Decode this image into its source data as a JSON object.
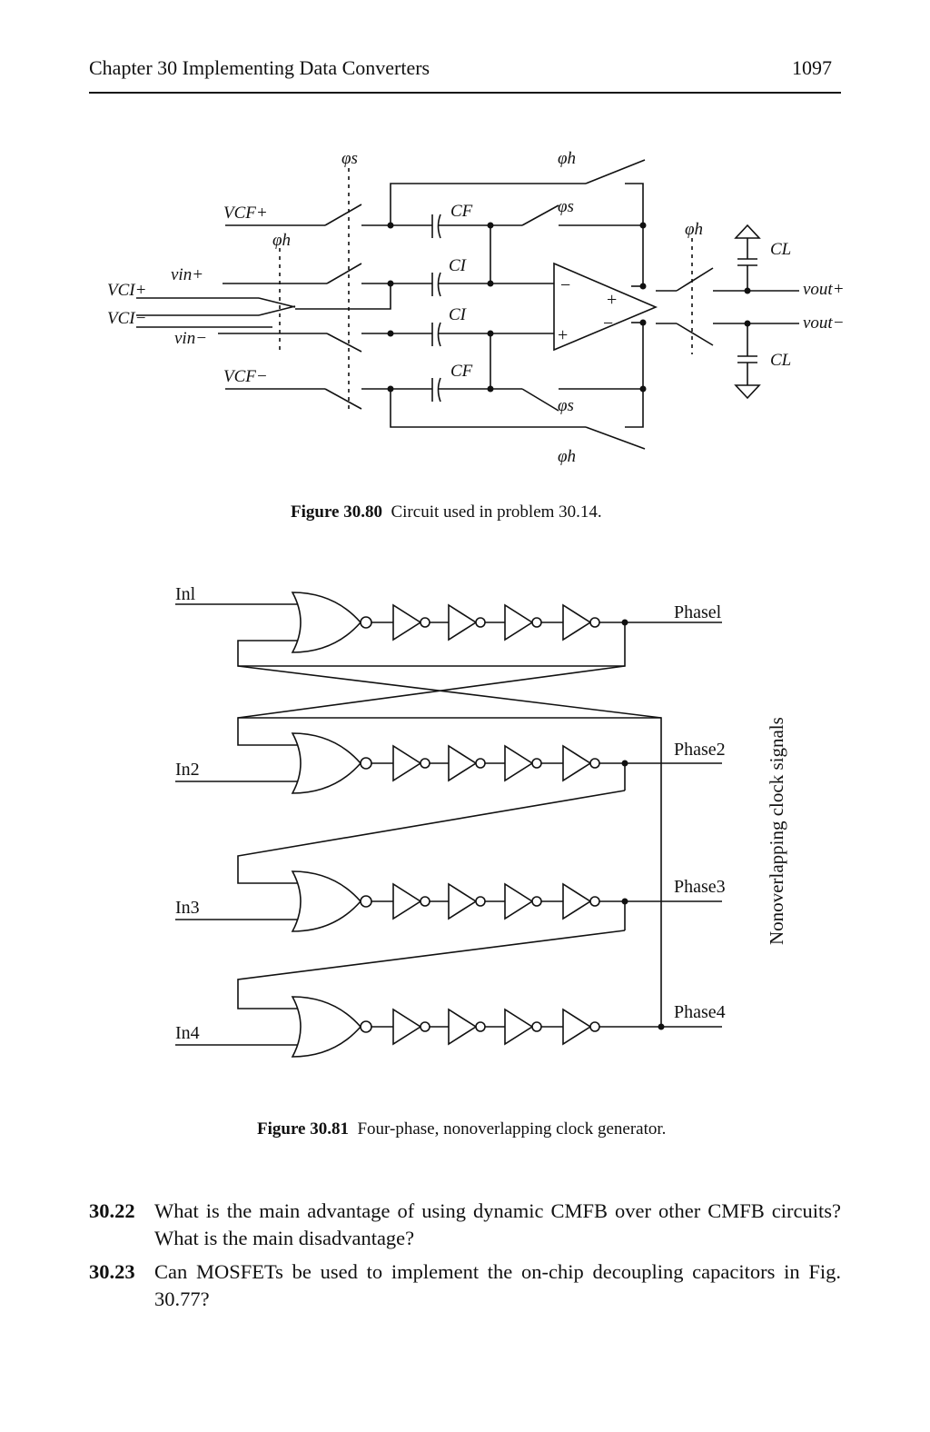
{
  "header": {
    "chapter": "Chapter 30 Implementing Data Converters",
    "page": "1097"
  },
  "fig80": {
    "caption_label": "Figure 30.80",
    "caption_text": "Circuit used in problem 30.14.",
    "labels": {
      "phi_s": "φs",
      "phi_h": "φh",
      "vcf_plus": "VCF+",
      "vcf_minus": "VCF−",
      "vci_plus": "VCI+",
      "vci_minus": "VCI−",
      "vin_plus": "vin+",
      "vin_minus": "vin−",
      "cf": "CF",
      "ci": "CI",
      "cl": "CL",
      "vout_plus": "vout+",
      "vout_minus": "vout−"
    }
  },
  "fig81": {
    "caption_label": "Figure 30.81",
    "caption_text": "Four-phase, nonoverlapping clock generator.",
    "inputs": [
      "Inl",
      "In2",
      "In3",
      "In4"
    ],
    "outputs": [
      "Phasel",
      "Phase2",
      "Phase3",
      "Phase4"
    ],
    "side_label": "Nonoverlapping clock signals"
  },
  "problems": [
    {
      "num": "30.22",
      "text": "What is the main advantage of using dynamic CMFB over other CMFB circuits? What is the main disadvantage?"
    },
    {
      "num": "30.23",
      "text": "Can MOSFETs be used to implement the on-chip decoupling capacitors in Fig. 30.77?"
    }
  ]
}
